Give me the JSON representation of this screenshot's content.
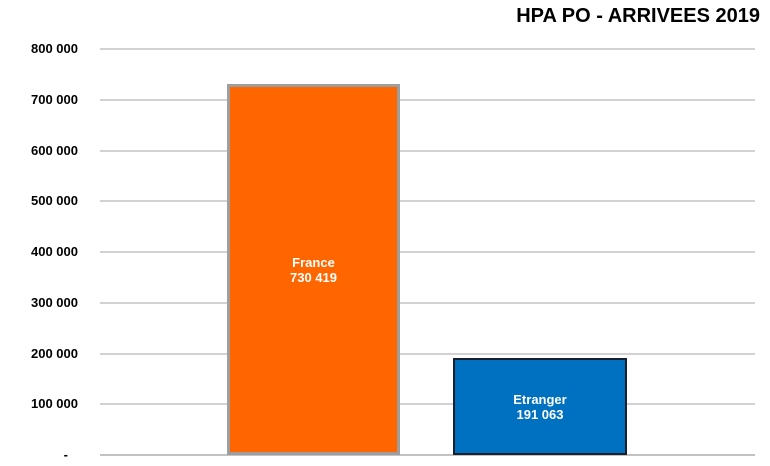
{
  "title": "HPA PO - ARRIVEES 2019",
  "chart_data": {
    "type": "bar",
    "title": "HPA PO - ARRIVEES 2019",
    "categories": [
      "France",
      "Etranger"
    ],
    "values": [
      730419,
      191063
    ],
    "value_labels": [
      "730 419",
      "191 063"
    ],
    "xlabel": "",
    "ylabel": "",
    "ylim": [
      0,
      800000
    ],
    "ytick_step": 100000,
    "ytick_labels": [
      "-",
      "100 000",
      "200 000",
      "300 000",
      "400 000",
      "500 000",
      "600 000",
      "700 000",
      "800 000"
    ],
    "grid": true,
    "legend": false,
    "bar_fill_colors": [
      "#FF6600",
      "#0070C0"
    ],
    "bar_border_colors": [
      "#9E9E9E",
      "#1A1F2B"
    ],
    "bar_label_color": "#FFFFFF",
    "gridline_color": "#D2D2D2",
    "title_color": "#000000",
    "tick_color": "#000000",
    "background_color": "#FFFFFF"
  }
}
